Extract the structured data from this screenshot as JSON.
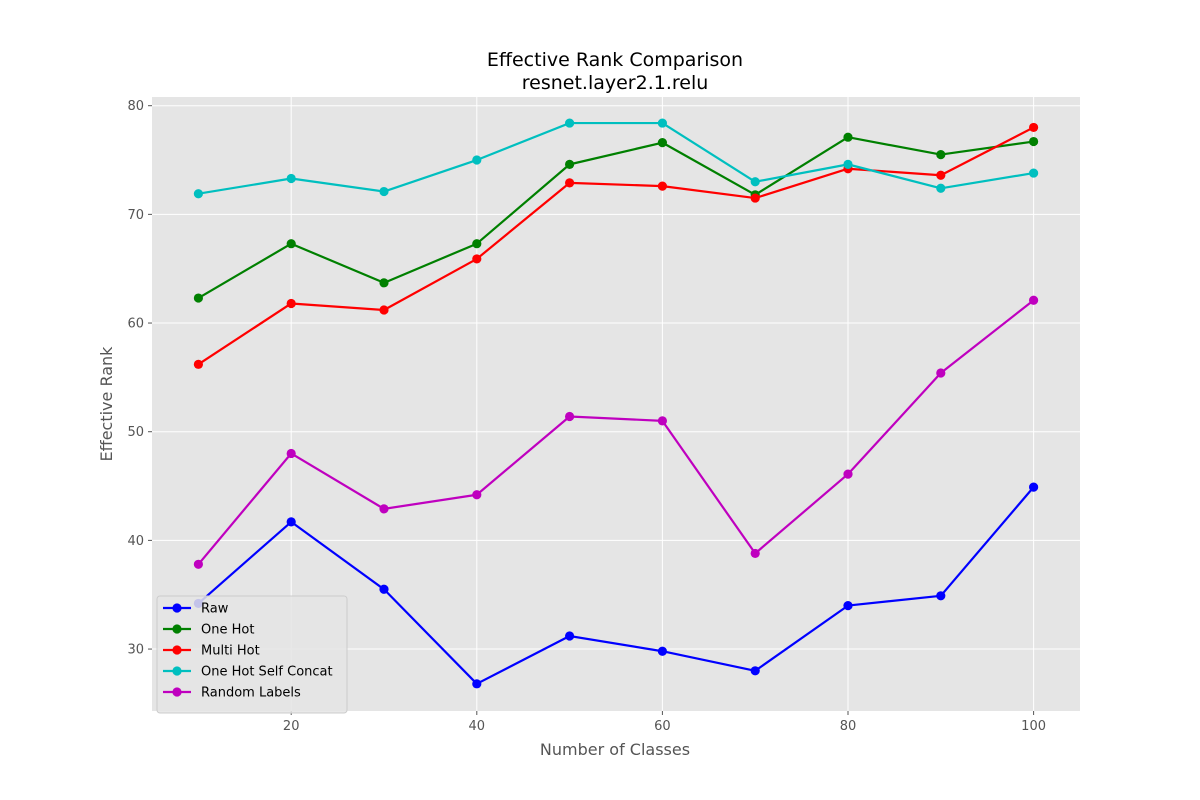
{
  "chart_data": {
    "type": "line",
    "title": "Effective Rank Comparison",
    "subtitle": "resnet.layer2.1.relu",
    "xlabel": "Number of Classes",
    "ylabel": "Effective Rank",
    "x": [
      10,
      20,
      30,
      40,
      50,
      60,
      70,
      80,
      90,
      100
    ],
    "xlim": [
      5,
      105
    ],
    "ylim": [
      24.3,
      80.8
    ],
    "xticks": [
      20,
      40,
      60,
      80,
      100
    ],
    "yticks": [
      30,
      40,
      50,
      60,
      70,
      80
    ],
    "grid": true,
    "background": "#e5e5e5",
    "legend_position": "lower-left",
    "series": [
      {
        "name": "Raw",
        "color": "#0000ff",
        "values": [
          34.2,
          41.7,
          35.5,
          26.8,
          31.2,
          29.8,
          28.0,
          34.0,
          34.9,
          44.9
        ]
      },
      {
        "name": "One Hot",
        "color": "#008000",
        "values": [
          62.3,
          67.3,
          63.7,
          67.3,
          74.6,
          76.6,
          71.8,
          77.1,
          75.5,
          76.7
        ]
      },
      {
        "name": "Multi Hot",
        "color": "#ff0000",
        "values": [
          56.2,
          61.8,
          61.2,
          65.9,
          72.9,
          72.6,
          71.5,
          74.2,
          73.6,
          78.0
        ]
      },
      {
        "name": "One Hot Self Concat",
        "color": "#00bfbf",
        "values": [
          71.9,
          73.3,
          72.1,
          75.0,
          78.4,
          78.4,
          73.0,
          74.6,
          72.4,
          73.8
        ]
      },
      {
        "name": "Random Labels",
        "color": "#bf00bf",
        "values": [
          37.8,
          48.0,
          42.9,
          44.2,
          51.4,
          51.0,
          38.8,
          46.1,
          55.4,
          62.1
        ]
      }
    ]
  }
}
